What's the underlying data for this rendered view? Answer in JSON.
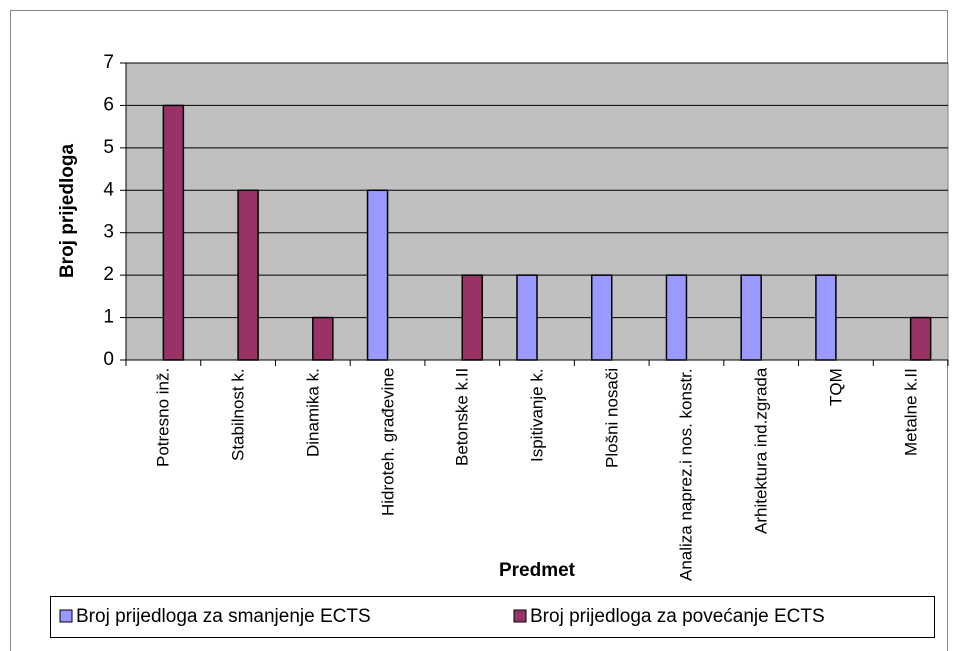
{
  "chart_data": {
    "type": "bar",
    "y_label": "Broj prijedloga",
    "x_label": "Predmet",
    "categories": [
      "Potresno inž.",
      "Stabilnost k.",
      "Dinamika k.",
      "Hidroteh. građevine",
      "Betonske k.II",
      "Ispitivanje k.",
      "Plošni nosači",
      "Analiza naprez.i nos. konstr.",
      "Arhitektura ind.zgrada",
      "TQM",
      "Metalne k.II"
    ],
    "series": [
      {
        "name": "Broj prijedloga za smanjenje ECTS",
        "color": "#9999ff",
        "values": [
          0,
          0,
          0,
          4,
          0,
          2,
          2,
          2,
          2,
          2,
          0
        ]
      },
      {
        "name": "Broj prijedloga za povećanje ECTS",
        "color": "#993366",
        "values": [
          6,
          4,
          1,
          0,
          2,
          0,
          0,
          0,
          0,
          0,
          1
        ]
      }
    ],
    "ylim": [
      0,
      7
    ],
    "yticks": [
      0,
      1,
      2,
      3,
      4,
      5,
      6,
      7
    ],
    "grid": true,
    "legend": "bottom"
  }
}
